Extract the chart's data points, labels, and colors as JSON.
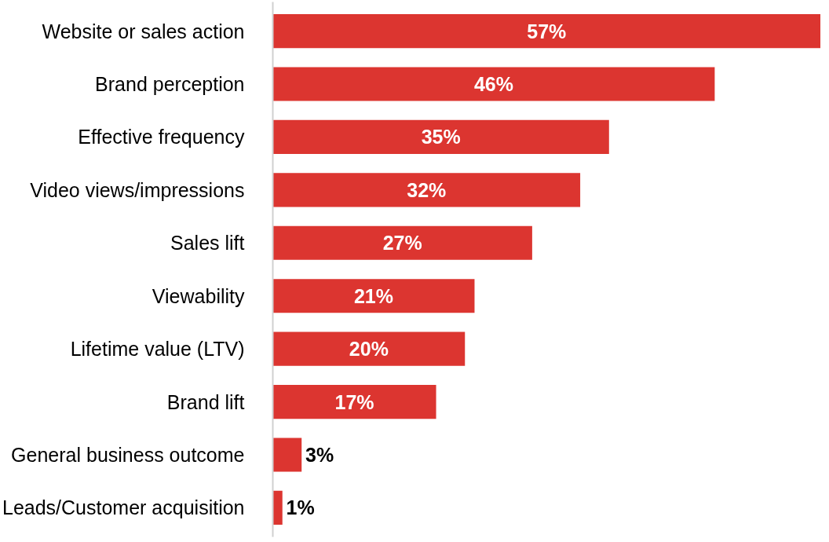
{
  "chart_data": {
    "type": "bar",
    "orientation": "horizontal",
    "categories": [
      "Website or sales action",
      "Brand perception",
      "Effective frequency",
      "Video views/impressions",
      "Sales lift",
      "Viewability",
      "Lifetime value (LTV)",
      "Brand lift",
      "General business outcome",
      "Leads/Customer acquisition"
    ],
    "values": [
      57,
      46,
      35,
      32,
      27,
      21,
      20,
      17,
      3,
      1
    ],
    "value_labels": [
      "57%",
      "46%",
      "35%",
      "32%",
      "27%",
      "21%",
      "20%",
      "17%",
      "3%",
      "1%"
    ],
    "color": "#dc3530",
    "grid": false
  }
}
